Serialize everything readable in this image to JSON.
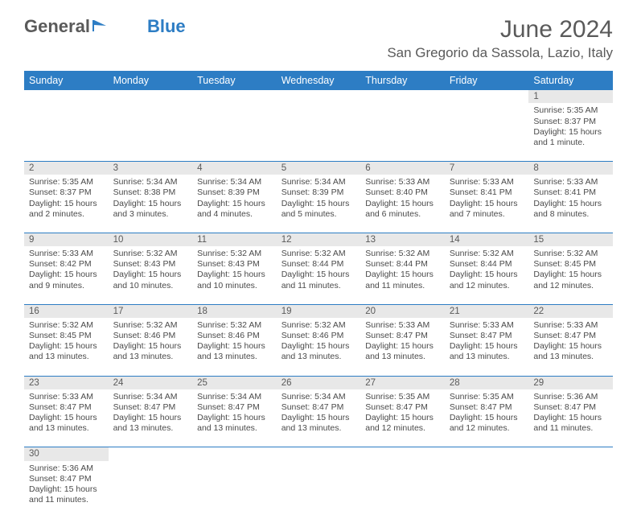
{
  "brand": {
    "name_part1": "General",
    "name_part2": "Blue"
  },
  "title": "June 2024",
  "location": "San Gregorio da Sassola, Lazio, Italy",
  "colors": {
    "accent": "#2d7dc4",
    "daynum_bg": "#e8e8e8",
    "text": "#5a5a5a"
  },
  "day_headers": [
    "Sunday",
    "Monday",
    "Tuesday",
    "Wednesday",
    "Thursday",
    "Friday",
    "Saturday"
  ],
  "weeks": [
    [
      null,
      null,
      null,
      null,
      null,
      null,
      {
        "n": "1",
        "sunrise": "Sunrise: 5:35 AM",
        "sunset": "Sunset: 8:37 PM",
        "daylight": "Daylight: 15 hours and 1 minute."
      }
    ],
    [
      {
        "n": "2",
        "sunrise": "Sunrise: 5:35 AM",
        "sunset": "Sunset: 8:37 PM",
        "daylight": "Daylight: 15 hours and 2 minutes."
      },
      {
        "n": "3",
        "sunrise": "Sunrise: 5:34 AM",
        "sunset": "Sunset: 8:38 PM",
        "daylight": "Daylight: 15 hours and 3 minutes."
      },
      {
        "n": "4",
        "sunrise": "Sunrise: 5:34 AM",
        "sunset": "Sunset: 8:39 PM",
        "daylight": "Daylight: 15 hours and 4 minutes."
      },
      {
        "n": "5",
        "sunrise": "Sunrise: 5:34 AM",
        "sunset": "Sunset: 8:39 PM",
        "daylight": "Daylight: 15 hours and 5 minutes."
      },
      {
        "n": "6",
        "sunrise": "Sunrise: 5:33 AM",
        "sunset": "Sunset: 8:40 PM",
        "daylight": "Daylight: 15 hours and 6 minutes."
      },
      {
        "n": "7",
        "sunrise": "Sunrise: 5:33 AM",
        "sunset": "Sunset: 8:41 PM",
        "daylight": "Daylight: 15 hours and 7 minutes."
      },
      {
        "n": "8",
        "sunrise": "Sunrise: 5:33 AM",
        "sunset": "Sunset: 8:41 PM",
        "daylight": "Daylight: 15 hours and 8 minutes."
      }
    ],
    [
      {
        "n": "9",
        "sunrise": "Sunrise: 5:33 AM",
        "sunset": "Sunset: 8:42 PM",
        "daylight": "Daylight: 15 hours and 9 minutes."
      },
      {
        "n": "10",
        "sunrise": "Sunrise: 5:32 AM",
        "sunset": "Sunset: 8:43 PM",
        "daylight": "Daylight: 15 hours and 10 minutes."
      },
      {
        "n": "11",
        "sunrise": "Sunrise: 5:32 AM",
        "sunset": "Sunset: 8:43 PM",
        "daylight": "Daylight: 15 hours and 10 minutes."
      },
      {
        "n": "12",
        "sunrise": "Sunrise: 5:32 AM",
        "sunset": "Sunset: 8:44 PM",
        "daylight": "Daylight: 15 hours and 11 minutes."
      },
      {
        "n": "13",
        "sunrise": "Sunrise: 5:32 AM",
        "sunset": "Sunset: 8:44 PM",
        "daylight": "Daylight: 15 hours and 11 minutes."
      },
      {
        "n": "14",
        "sunrise": "Sunrise: 5:32 AM",
        "sunset": "Sunset: 8:44 PM",
        "daylight": "Daylight: 15 hours and 12 minutes."
      },
      {
        "n": "15",
        "sunrise": "Sunrise: 5:32 AM",
        "sunset": "Sunset: 8:45 PM",
        "daylight": "Daylight: 15 hours and 12 minutes."
      }
    ],
    [
      {
        "n": "16",
        "sunrise": "Sunrise: 5:32 AM",
        "sunset": "Sunset: 8:45 PM",
        "daylight": "Daylight: 15 hours and 13 minutes."
      },
      {
        "n": "17",
        "sunrise": "Sunrise: 5:32 AM",
        "sunset": "Sunset: 8:46 PM",
        "daylight": "Daylight: 15 hours and 13 minutes."
      },
      {
        "n": "18",
        "sunrise": "Sunrise: 5:32 AM",
        "sunset": "Sunset: 8:46 PM",
        "daylight": "Daylight: 15 hours and 13 minutes."
      },
      {
        "n": "19",
        "sunrise": "Sunrise: 5:32 AM",
        "sunset": "Sunset: 8:46 PM",
        "daylight": "Daylight: 15 hours and 13 minutes."
      },
      {
        "n": "20",
        "sunrise": "Sunrise: 5:33 AM",
        "sunset": "Sunset: 8:47 PM",
        "daylight": "Daylight: 15 hours and 13 minutes."
      },
      {
        "n": "21",
        "sunrise": "Sunrise: 5:33 AM",
        "sunset": "Sunset: 8:47 PM",
        "daylight": "Daylight: 15 hours and 13 minutes."
      },
      {
        "n": "22",
        "sunrise": "Sunrise: 5:33 AM",
        "sunset": "Sunset: 8:47 PM",
        "daylight": "Daylight: 15 hours and 13 minutes."
      }
    ],
    [
      {
        "n": "23",
        "sunrise": "Sunrise: 5:33 AM",
        "sunset": "Sunset: 8:47 PM",
        "daylight": "Daylight: 15 hours and 13 minutes."
      },
      {
        "n": "24",
        "sunrise": "Sunrise: 5:34 AM",
        "sunset": "Sunset: 8:47 PM",
        "daylight": "Daylight: 15 hours and 13 minutes."
      },
      {
        "n": "25",
        "sunrise": "Sunrise: 5:34 AM",
        "sunset": "Sunset: 8:47 PM",
        "daylight": "Daylight: 15 hours and 13 minutes."
      },
      {
        "n": "26",
        "sunrise": "Sunrise: 5:34 AM",
        "sunset": "Sunset: 8:47 PM",
        "daylight": "Daylight: 15 hours and 13 minutes."
      },
      {
        "n": "27",
        "sunrise": "Sunrise: 5:35 AM",
        "sunset": "Sunset: 8:47 PM",
        "daylight": "Daylight: 15 hours and 12 minutes."
      },
      {
        "n": "28",
        "sunrise": "Sunrise: 5:35 AM",
        "sunset": "Sunset: 8:47 PM",
        "daylight": "Daylight: 15 hours and 12 minutes."
      },
      {
        "n": "29",
        "sunrise": "Sunrise: 5:36 AM",
        "sunset": "Sunset: 8:47 PM",
        "daylight": "Daylight: 15 hours and 11 minutes."
      }
    ],
    [
      {
        "n": "30",
        "sunrise": "Sunrise: 5:36 AM",
        "sunset": "Sunset: 8:47 PM",
        "daylight": "Daylight: 15 hours and 11 minutes."
      },
      null,
      null,
      null,
      null,
      null,
      null
    ]
  ]
}
